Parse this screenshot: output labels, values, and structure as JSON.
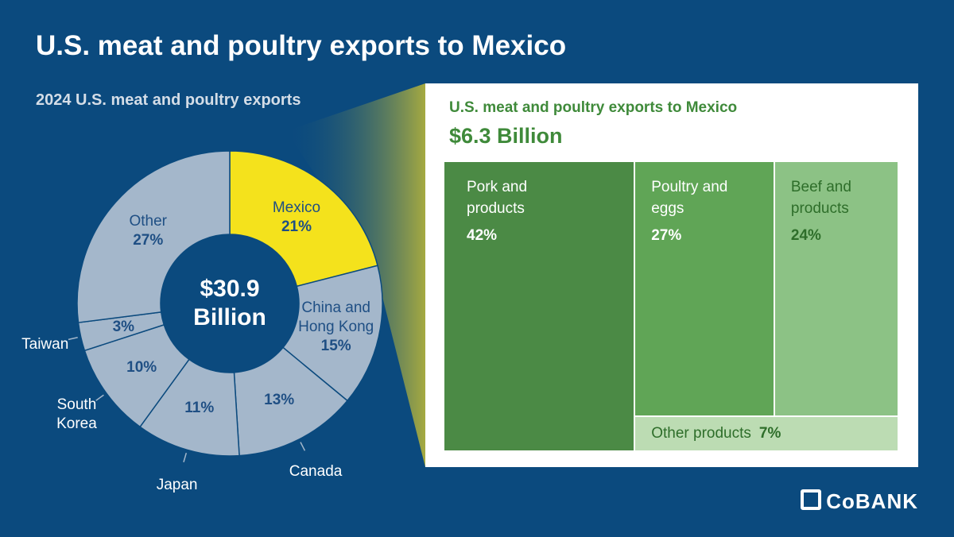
{
  "title": "U.S. meat and poultry exports to Mexico",
  "chart_data": [
    {
      "type": "pie",
      "title": "2024 U.S. meat and poultry exports",
      "center_label": "$30.9 Billion",
      "categories": [
        "Mexico",
        "China and Hong Kong",
        "Canada",
        "Japan",
        "South Korea",
        "Taiwan",
        "Other"
      ],
      "values": [
        21,
        15,
        13,
        11,
        10,
        3,
        27
      ],
      "value_labels": [
        "21%",
        "15%",
        "13%",
        "11%",
        "10%",
        "3%",
        "27%"
      ],
      "colors": [
        "#f4e21c",
        "#a4b7cb",
        "#a4b7cb",
        "#a4b7cb",
        "#a4b7cb",
        "#a4b7cb",
        "#a4b7cb"
      ]
    },
    {
      "type": "treemap",
      "title": "U.S. meat and poultry exports to Mexico",
      "subtitle": "$6.3 Billion",
      "categories": [
        "Pork and products",
        "Poultry and eggs",
        "Beef and products",
        "Other products"
      ],
      "values": [
        42,
        27,
        24,
        7
      ],
      "value_labels": [
        "42%",
        "27%",
        "24%",
        "7%"
      ],
      "colors": [
        "#4b8a45",
        "#60a556",
        "#8cc285",
        "#bcdcb3"
      ]
    }
  ],
  "logo": "CoBANK"
}
